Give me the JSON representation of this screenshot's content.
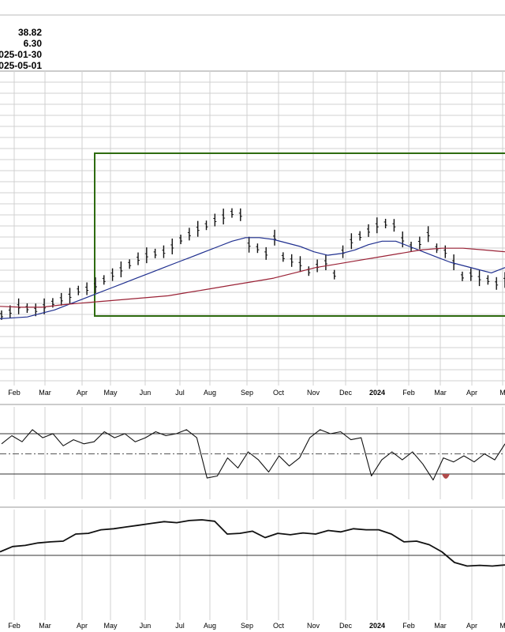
{
  "header": {
    "values": [
      "38.82",
      "6.30",
      "025-01-30",
      "025-05-01"
    ]
  },
  "colors": {
    "price_bars": "#111111",
    "ma_short": "#1f2f8f",
    "ma_long": "#9a2236",
    "box": "#2e6b10",
    "grid": "#d0d0d0",
    "rsi_fill": "#b04a4a"
  },
  "chart_data": [
    {
      "type": "line",
      "panel": "price",
      "x_labels": [
        "Feb",
        "Mar",
        "Apr",
        "May",
        "Jun",
        "Jul",
        "Aug",
        "Sep",
        "Oct",
        "Nov",
        "Dec",
        "2024",
        "Feb",
        "Mar",
        "Apr",
        "M"
      ],
      "series": [
        {
          "values": [
            22,
            24,
            27,
            26,
            25,
            27,
            29,
            31,
            33,
            36,
            37,
            39,
            42,
            45,
            48,
            51,
            54,
            56,
            57,
            58,
            61,
            65,
            68,
            71,
            73,
            76,
            78,
            80,
            79,
            62,
            60,
            57,
            66,
            55,
            53,
            51,
            47,
            50,
            52,
            45,
            58,
            64,
            67,
            70,
            73,
            74,
            73,
            65,
            61,
            63,
            68,
            60,
            58,
            52,
            44,
            45,
            43,
            42,
            40,
            42
          ]
        },
        {
          "values": [
            20,
            20.5,
            21,
            23,
            25,
            28,
            31,
            34,
            37,
            40,
            43,
            46,
            49,
            52,
            55,
            58,
            61,
            64,
            66,
            66,
            65,
            63,
            61,
            58,
            56,
            57,
            59,
            62,
            64,
            64,
            61,
            58,
            55,
            52,
            50,
            48,
            46,
            49
          ]
        },
        {
          "values": [
            27,
            26.5,
            26.5,
            28,
            29,
            30,
            31,
            32,
            33,
            35,
            37,
            39,
            41,
            43,
            46,
            49,
            51,
            53,
            55,
            57,
            59,
            60,
            60,
            59,
            58
          ]
        }
      ]
    },
    {
      "type": "line",
      "panel": "rsi",
      "reference_lines": [
        70,
        50,
        30
      ],
      "values": [
        60,
        68,
        62,
        74,
        66,
        70,
        58,
        64,
        60,
        62,
        72,
        66,
        70,
        62,
        66,
        72,
        68,
        70,
        74,
        66,
        26,
        28,
        46,
        36,
        52,
        44,
        32,
        48,
        38,
        46,
        66,
        74,
        70,
        72,
        64,
        66,
        28,
        44,
        52,
        44,
        52,
        40,
        24,
        46,
        42,
        48,
        42,
        50,
        44,
        60
      ]
    },
    {
      "type": "line",
      "panel": "relative",
      "values": [
        10,
        25,
        28,
        35,
        38,
        40,
        60,
        62,
        72,
        75,
        80,
        85,
        90,
        95,
        92,
        98,
        100,
        96,
        60,
        62,
        68,
        50,
        62,
        58,
        63,
        60,
        70,
        66,
        75,
        72,
        72,
        60,
        38,
        40,
        30,
        10,
        -20,
        -30,
        -28,
        -30,
        -27
      ]
    }
  ]
}
